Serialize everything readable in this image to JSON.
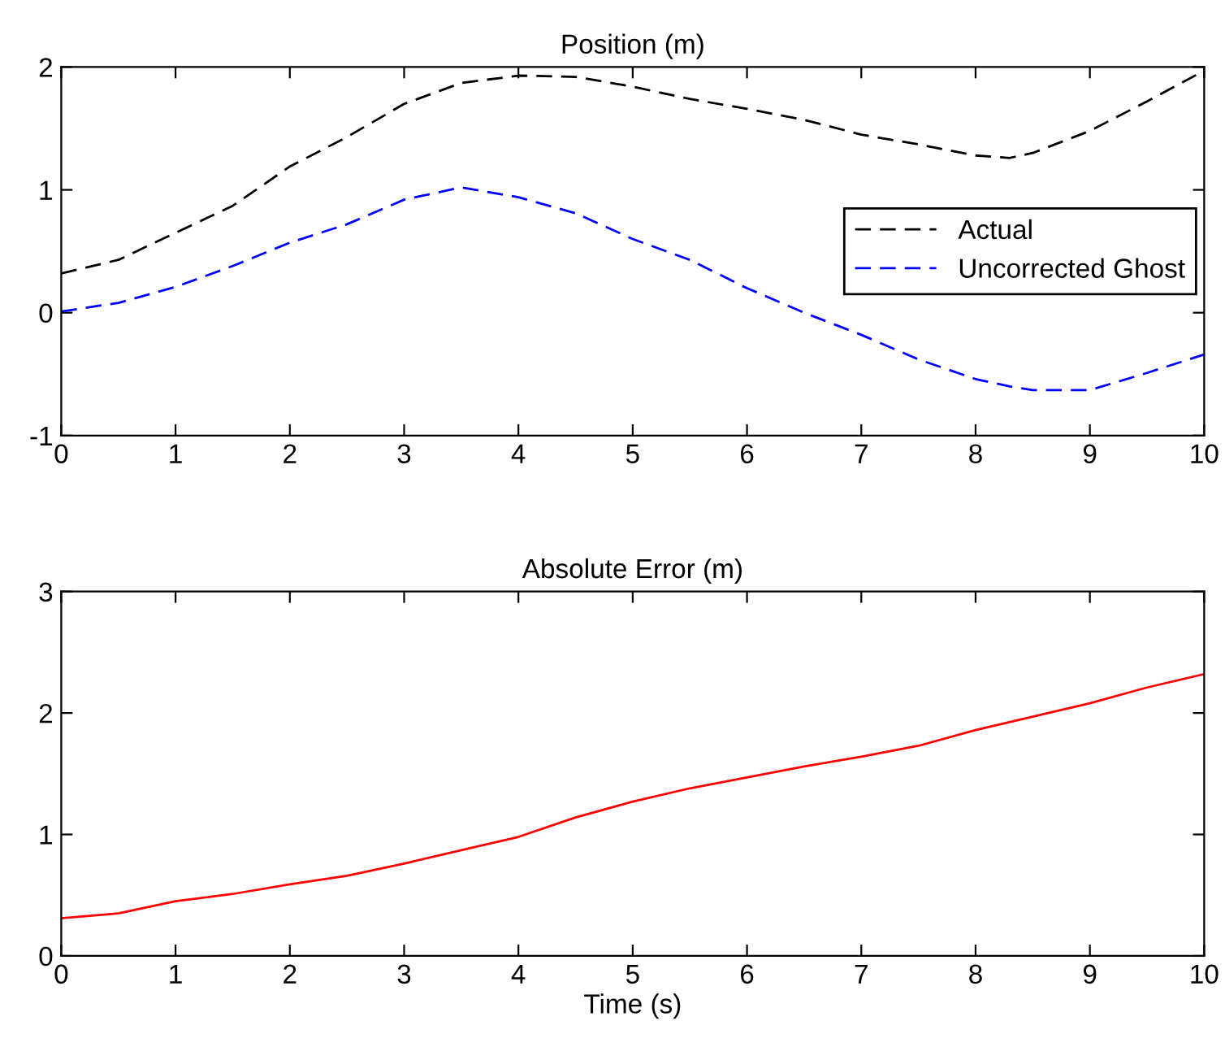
{
  "chart_data": [
    {
      "type": "line",
      "title": "Position (m)",
      "x": [
        0,
        0.5,
        1,
        1.5,
        2,
        2.5,
        3,
        3.5,
        4,
        4.5,
        5,
        5.5,
        6,
        6.5,
        7,
        7.5,
        8,
        8.3,
        8.5,
        9,
        9.5,
        10
      ],
      "xlim": [
        0,
        10
      ],
      "xticks": [
        0,
        1,
        2,
        3,
        4,
        5,
        6,
        7,
        8,
        9,
        10
      ],
      "ylim": [
        -1,
        2
      ],
      "yticks": [
        -1,
        0,
        1,
        2
      ],
      "legend": "center right",
      "line_style": "dashed",
      "grid": false,
      "series": [
        {
          "name": "Actual",
          "color": "#000000",
          "values": [
            0.32,
            0.43,
            0.65,
            0.87,
            1.19,
            1.43,
            1.7,
            1.87,
            1.93,
            1.92,
            1.84,
            1.74,
            1.66,
            1.57,
            1.45,
            1.37,
            1.28,
            1.26,
            1.3,
            1.48,
            1.72,
            1.97
          ]
        },
        {
          "name": "Uncorrected Ghost",
          "color": "#0000ff",
          "values": [
            0.01,
            0.08,
            0.21,
            0.38,
            0.57,
            0.72,
            0.92,
            1.02,
            0.94,
            0.81,
            0.6,
            0.43,
            0.2,
            0.0,
            -0.18,
            -0.38,
            -0.54,
            -0.6,
            -0.63,
            -0.63,
            -0.49,
            -0.34
          ]
        }
      ]
    },
    {
      "type": "line",
      "title": "Absolute Error (m)",
      "xlabel": "Time (s)",
      "x": [
        0,
        0.5,
        1,
        1.5,
        2,
        2.5,
        3,
        3.5,
        4,
        4.5,
        5,
        5.5,
        6,
        6.5,
        7,
        7.5,
        8,
        8.5,
        9,
        9.5,
        10
      ],
      "xlim": [
        0,
        10
      ],
      "xticks": [
        0,
        1,
        2,
        3,
        4,
        5,
        6,
        7,
        8,
        9,
        10
      ],
      "ylim": [
        0,
        3
      ],
      "yticks": [
        0,
        1,
        2,
        3
      ],
      "line_style": "solid",
      "grid": false,
      "series": [
        {
          "color": "#ff0000",
          "values": [
            0.31,
            0.35,
            0.45,
            0.51,
            0.59,
            0.66,
            0.76,
            0.87,
            0.98,
            1.14,
            1.27,
            1.38,
            1.47,
            1.56,
            1.64,
            1.73,
            1.86,
            1.97,
            2.08,
            2.21,
            2.32
          ]
        }
      ]
    }
  ]
}
